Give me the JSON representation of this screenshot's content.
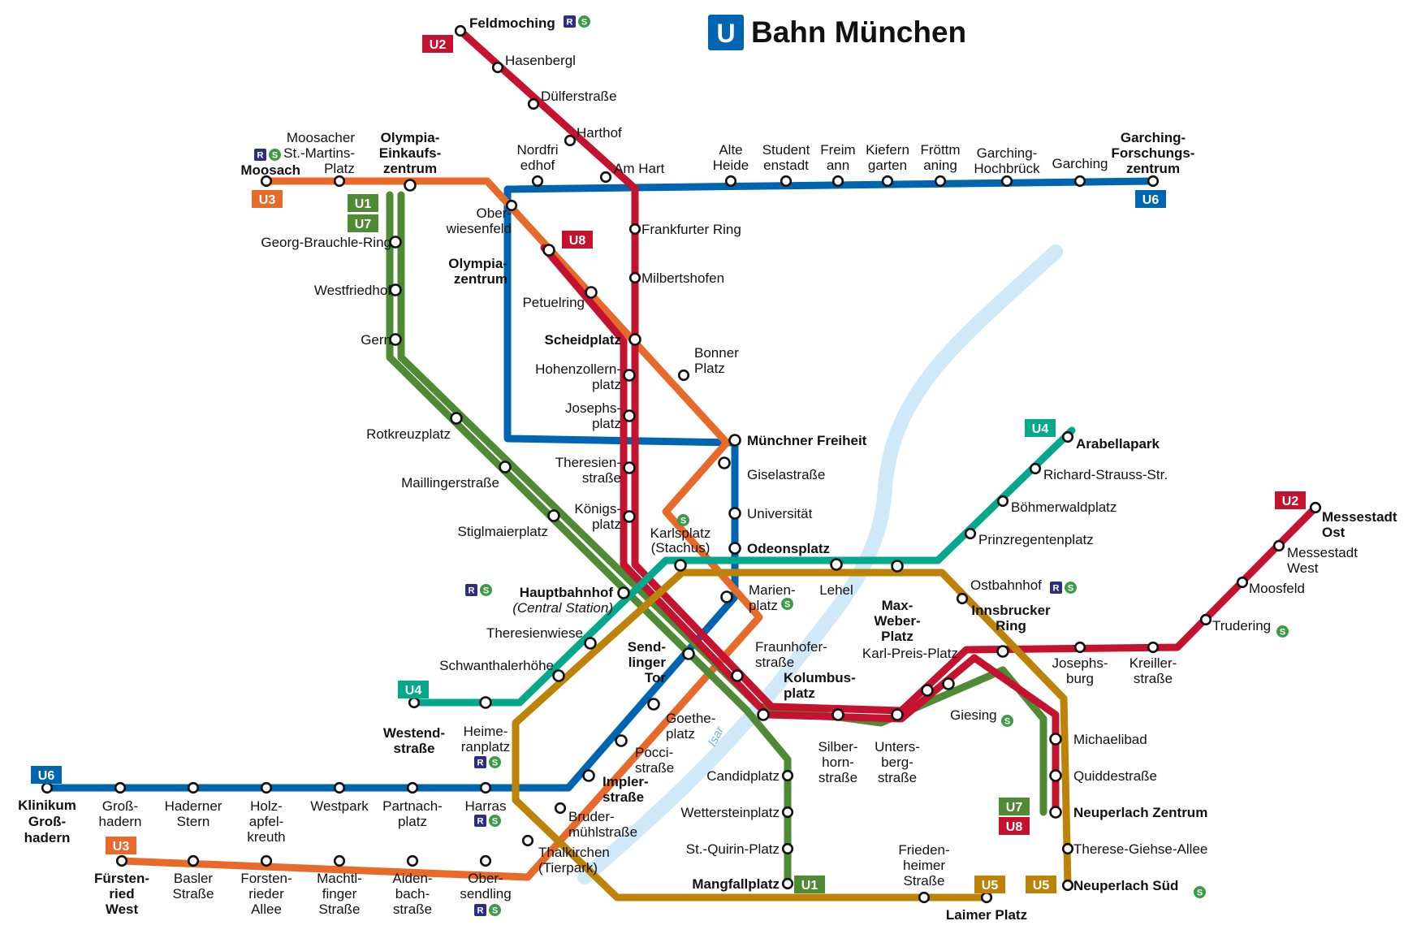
{
  "title": {
    "symbol": "U",
    "text": "Bahn München"
  },
  "river": {
    "name": "Isar"
  },
  "colors": {
    "U1": "#4f8a34",
    "U2": "#c4122f",
    "U3": "#e86a2a",
    "U4": "#05a88a",
    "U5": "#bd8208",
    "U6": "#0065b0",
    "U7": "#4f8a34",
    "U8": "#c4122f",
    "title_symbol": "#0065b0",
    "regional": "#2e2e80",
    "sbahn": "#3d9b47",
    "river": "#cfe9f8"
  },
  "badges": [
    {
      "id": "u2-north",
      "text": "U2",
      "line": "U2"
    },
    {
      "id": "u3-west",
      "text": "U3",
      "line": "U3"
    },
    {
      "id": "u1-north",
      "text": "U1",
      "line": "U1"
    },
    {
      "id": "u7-north",
      "text": "U7",
      "line": "U7"
    },
    {
      "id": "u8-north",
      "text": "U8",
      "line": "U8"
    },
    {
      "id": "u6-east",
      "text": "U6",
      "line": "U6"
    },
    {
      "id": "u4-east",
      "text": "U4",
      "line": "U4"
    },
    {
      "id": "u2-east",
      "text": "U2",
      "line": "U2"
    },
    {
      "id": "u4-west",
      "text": "U4",
      "line": "U4"
    },
    {
      "id": "u6-west",
      "text": "U6",
      "line": "U6"
    },
    {
      "id": "u3-south",
      "text": "U3",
      "line": "U3"
    },
    {
      "id": "u1-south",
      "text": "U1",
      "line": "U1"
    },
    {
      "id": "u5-south",
      "text": "U5",
      "line": "U5"
    },
    {
      "id": "u7-south",
      "text": "U7",
      "line": "U7"
    },
    {
      "id": "u8-south",
      "text": "U8",
      "line": "U8"
    },
    {
      "id": "u5-east",
      "text": "U5",
      "line": "U5"
    }
  ],
  "interchange_icons": {
    "regional": "R",
    "sbahn": "S"
  },
  "stations": [
    {
      "id": "feldmoching",
      "lines": [
        "U2"
      ]
    },
    {
      "id": "hasenbergl",
      "lines": [
        "U2"
      ]
    },
    {
      "id": "duelferstrasse",
      "lines": [
        "U2"
      ]
    },
    {
      "id": "harthof",
      "lines": [
        "U2"
      ]
    },
    {
      "id": "am-hart",
      "lines": [
        "U2"
      ]
    },
    {
      "id": "frankfurter-ring",
      "lines": [
        "U2"
      ]
    },
    {
      "id": "milbertshofen",
      "lines": [
        "U2"
      ]
    },
    {
      "id": "moosach",
      "lines": [
        "U3"
      ]
    },
    {
      "id": "moosacher-st-martins-platz",
      "lines": [
        "U3"
      ]
    },
    {
      "id": "olympia-einkaufszentrum",
      "lines": [
        "U1",
        "U3",
        "U7"
      ]
    },
    {
      "id": "georg-brauchle-ring",
      "lines": [
        "U1",
        "U7"
      ]
    },
    {
      "id": "westfriedhof",
      "lines": [
        "U1",
        "U7"
      ]
    },
    {
      "id": "gern",
      "lines": [
        "U1",
        "U7"
      ]
    },
    {
      "id": "rotkreuzplatz",
      "lines": [
        "U1",
        "U7"
      ]
    },
    {
      "id": "maillingerstrasse",
      "lines": [
        "U1",
        "U7"
      ]
    },
    {
      "id": "stiglmaierplatz",
      "lines": [
        "U1",
        "U7"
      ]
    },
    {
      "id": "oberwiesenfeld",
      "lines": [
        "U3"
      ]
    },
    {
      "id": "olympiazentrum",
      "lines": [
        "U3",
        "U8"
      ]
    },
    {
      "id": "petuelring",
      "lines": [
        "U3",
        "U8"
      ]
    },
    {
      "id": "scheidplatz",
      "lines": [
        "U2",
        "U3",
        "U8"
      ]
    },
    {
      "id": "bonner-platz",
      "lines": [
        "U3"
      ]
    },
    {
      "id": "hohenzollernplatz",
      "lines": [
        "U2",
        "U8"
      ]
    },
    {
      "id": "josephsplatz",
      "lines": [
        "U2",
        "U8"
      ]
    },
    {
      "id": "theresienstrasse",
      "lines": [
        "U2",
        "U8"
      ]
    },
    {
      "id": "koenigsplatz",
      "lines": [
        "U2",
        "U8"
      ]
    },
    {
      "id": "nordfriedhof",
      "lines": [
        "U6"
      ]
    },
    {
      "id": "alte-heide",
      "lines": [
        "U6"
      ]
    },
    {
      "id": "studentenstadt",
      "lines": [
        "U6"
      ]
    },
    {
      "id": "freimann",
      "lines": [
        "U6"
      ]
    },
    {
      "id": "kieferngarten",
      "lines": [
        "U6"
      ]
    },
    {
      "id": "froettmaning",
      "lines": [
        "U6"
      ]
    },
    {
      "id": "garching-hochbrueck",
      "lines": [
        "U6"
      ]
    },
    {
      "id": "garching",
      "lines": [
        "U6"
      ]
    },
    {
      "id": "garching-forschungszentrum",
      "lines": [
        "U6"
      ]
    },
    {
      "id": "muenchner-freiheit",
      "lines": [
        "U3",
        "U6"
      ]
    },
    {
      "id": "giselastrasse",
      "lines": [
        "U3",
        "U6"
      ]
    },
    {
      "id": "universitaet",
      "lines": [
        "U3",
        "U6"
      ]
    },
    {
      "id": "odeonsplatz",
      "lines": [
        "U3",
        "U4",
        "U5",
        "U6"
      ]
    },
    {
      "id": "marienplatz",
      "lines": [
        "U3",
        "U6"
      ]
    },
    {
      "id": "karlsplatz",
      "lines": [
        "U4",
        "U5"
      ]
    },
    {
      "id": "hauptbahnhof",
      "lines": [
        "U1",
        "U2",
        "U4",
        "U5",
        "U7",
        "U8"
      ]
    },
    {
      "id": "theresienwiese",
      "lines": [
        "U4",
        "U5"
      ]
    },
    {
      "id": "schwanthalerhoehe",
      "lines": [
        "U4",
        "U5"
      ]
    },
    {
      "id": "westendstrasse",
      "lines": [
        "U4"
      ]
    },
    {
      "id": "heimeranplatz",
      "lines": [
        "U4",
        "U5"
      ]
    },
    {
      "id": "lehel",
      "lines": [
        "U4",
        "U5"
      ]
    },
    {
      "id": "max-weber-platz",
      "lines": [
        "U4",
        "U5"
      ]
    },
    {
      "id": "prinzregentenplatz",
      "lines": [
        "U4"
      ]
    },
    {
      "id": "boehmerwaldplatz",
      "lines": [
        "U4"
      ]
    },
    {
      "id": "richard-strauss-str",
      "lines": [
        "U4"
      ]
    },
    {
      "id": "arabellapark",
      "lines": [
        "U4"
      ]
    },
    {
      "id": "ostbahnhof",
      "lines": [
        "U5"
      ]
    },
    {
      "id": "innsbrucker-ring",
      "lines": [
        "U2",
        "U5",
        "U7",
        "U8"
      ]
    },
    {
      "id": "josephsburg",
      "lines": [
        "U2"
      ]
    },
    {
      "id": "kreillerstrasse",
      "lines": [
        "U2"
      ]
    },
    {
      "id": "trudering",
      "lines": [
        "U2"
      ]
    },
    {
      "id": "moosfeld",
      "lines": [
        "U2"
      ]
    },
    {
      "id": "messestadt-west",
      "lines": [
        "U2"
      ]
    },
    {
      "id": "messestadt-ost",
      "lines": [
        "U2"
      ]
    },
    {
      "id": "michaelibad",
      "lines": [
        "U5",
        "U7",
        "U8"
      ]
    },
    {
      "id": "quiddestrasse",
      "lines": [
        "U5",
        "U7",
        "U8"
      ]
    },
    {
      "id": "neuperlach-zentrum",
      "lines": [
        "U5",
        "U7",
        "U8"
      ]
    },
    {
      "id": "therese-giehse-allee",
      "lines": [
        "U5"
      ]
    },
    {
      "id": "neuperlach-sued",
      "lines": [
        "U5"
      ]
    },
    {
      "id": "sendlinger-tor",
      "lines": [
        "U1",
        "U2",
        "U3",
        "U6",
        "U7",
        "U8"
      ]
    },
    {
      "id": "fraunhoferstrasse",
      "lines": [
        "U1",
        "U2",
        "U7",
        "U8"
      ]
    },
    {
      "id": "kolumbusplatz",
      "lines": [
        "U1",
        "U2",
        "U7",
        "U8"
      ]
    },
    {
      "id": "silberhornstrasse",
      "lines": [
        "U2",
        "U7",
        "U8"
      ]
    },
    {
      "id": "untersbergstrasse",
      "lines": [
        "U2",
        "U7",
        "U8"
      ]
    },
    {
      "id": "karl-preis-platz",
      "lines": [
        "U2",
        "U7",
        "U8"
      ]
    },
    {
      "id": "giesing",
      "lines": [
        "U2",
        "U7",
        "U8"
      ]
    },
    {
      "id": "candidplatz",
      "lines": [
        "U1"
      ]
    },
    {
      "id": "wettersteinplatz",
      "lines": [
        "U1"
      ]
    },
    {
      "id": "st-quirin-platz",
      "lines": [
        "U1"
      ]
    },
    {
      "id": "mangfallplatz",
      "lines": [
        "U1"
      ]
    },
    {
      "id": "goetheplatz",
      "lines": [
        "U3",
        "U6"
      ]
    },
    {
      "id": "poccistrasse",
      "lines": [
        "U3",
        "U6"
      ]
    },
    {
      "id": "implerstrasse",
      "lines": [
        "U3",
        "U6"
      ]
    },
    {
      "id": "brudermuehlstrasse",
      "lines": [
        "U3"
      ]
    },
    {
      "id": "thalkirchen",
      "lines": [
        "U3"
      ]
    },
    {
      "id": "harras",
      "lines": [
        "U6"
      ]
    },
    {
      "id": "partnachplatz",
      "lines": [
        "U6"
      ]
    },
    {
      "id": "westpark",
      "lines": [
        "U6"
      ]
    },
    {
      "id": "holzapfelkreuth",
      "lines": [
        "U6"
      ]
    },
    {
      "id": "haderner-stern",
      "lines": [
        "U6"
      ]
    },
    {
      "id": "grosshadern",
      "lines": [
        "U6"
      ]
    },
    {
      "id": "klinikum-grosshadern",
      "lines": [
        "U6"
      ]
    },
    {
      "id": "obersendling",
      "lines": [
        "U3"
      ]
    },
    {
      "id": "aidenbachstrasse",
      "lines": [
        "U3"
      ]
    },
    {
      "id": "machtlfinger-strasse",
      "lines": [
        "U3"
      ]
    },
    {
      "id": "forstenrieder-allee",
      "lines": [
        "U3"
      ]
    },
    {
      "id": "basler-strasse",
      "lines": [
        "U3"
      ]
    },
    {
      "id": "fuerstenried-west",
      "lines": [
        "U3"
      ]
    },
    {
      "id": "friedenheimer-strasse",
      "lines": [
        "U5"
      ]
    },
    {
      "id": "laimer-platz",
      "lines": [
        "U5"
      ]
    }
  ],
  "labels": [
    {
      "t": "Feldmoching",
      "bold": true
    },
    {
      "t": "Hasenbergl"
    },
    {
      "t": "Dülferstraße"
    },
    {
      "t": "Harthof"
    },
    {
      "t": "Am Hart"
    },
    {
      "t": "Frankfurter Ring"
    },
    {
      "t": "Milbertshofen"
    },
    {
      "t": "Moosach",
      "bold": true
    },
    {
      "t": "Moosacher"
    },
    {
      "t": "St.-Martins-"
    },
    {
      "t": "Platz"
    },
    {
      "t": "Olympia-",
      "bold": true
    },
    {
      "t": "Einkaufs-",
      "bold": true
    },
    {
      "t": "zentrum",
      "bold": true
    },
    {
      "t": "Georg-Brauchle-Ring"
    },
    {
      "t": "Westfriedhof"
    },
    {
      "t": "Gern"
    },
    {
      "t": "Rotkreuzplatz"
    },
    {
      "t": "Maillingerstraße"
    },
    {
      "t": "Stiglmaierplatz"
    },
    {
      "t": "Ober-"
    },
    {
      "t": "wiesenfeld"
    },
    {
      "t": "Olympia-",
      "bold": true
    },
    {
      "t": "zentrum",
      "bold": true
    },
    {
      "t": "Petuelring"
    },
    {
      "t": "Scheidplatz",
      "bold": true
    },
    {
      "t": "Bonner"
    },
    {
      "t": "Platz"
    },
    {
      "t": "Hohenzollern-"
    },
    {
      "t": "platz"
    },
    {
      "t": "Josephs-"
    },
    {
      "t": "platz"
    },
    {
      "t": "Theresien-"
    },
    {
      "t": "straße"
    },
    {
      "t": "Königs-"
    },
    {
      "t": "platz"
    },
    {
      "t": "Nordfri"
    },
    {
      "t": "edhof"
    },
    {
      "t": "Alte"
    },
    {
      "t": "Heide"
    },
    {
      "t": "Student"
    },
    {
      "t": "enstadt"
    },
    {
      "t": "Freim"
    },
    {
      "t": "ann"
    },
    {
      "t": "Kiefern"
    },
    {
      "t": "garten"
    },
    {
      "t": "Fröttm"
    },
    {
      "t": "aning"
    },
    {
      "t": "Garching-"
    },
    {
      "t": "Hochbrück"
    },
    {
      "t": "Garching"
    },
    {
      "t": "Garching-",
      "bold": true
    },
    {
      "t": "Forschungs-",
      "bold": true
    },
    {
      "t": "zentrum",
      "bold": true
    },
    {
      "t": "Münchner Freiheit",
      "bold": true
    },
    {
      "t": "Giselastraße"
    },
    {
      "t": "Universität"
    },
    {
      "t": "Odeonsplatz",
      "bold": true
    },
    {
      "t": "Karlsplatz"
    },
    {
      "t": "(Stachus)"
    },
    {
      "t": "Hauptbahnhof",
      "bold": true
    },
    {
      "t": "(Central Station)",
      "ital": true
    },
    {
      "t": "Marien-"
    },
    {
      "t": "platz"
    },
    {
      "t": "Lehel"
    },
    {
      "t": "Max-",
      "bold": true
    },
    {
      "t": "Weber-",
      "bold": true
    },
    {
      "t": "Platz",
      "bold": true
    },
    {
      "t": "Theresienwiese"
    },
    {
      "t": "Schwanthalerhöhe"
    },
    {
      "t": "Westend-",
      "bold": true
    },
    {
      "t": "straße",
      "bold": true
    },
    {
      "t": "Heime-"
    },
    {
      "t": "ranplatz"
    },
    {
      "t": "Arabellapark",
      "bold": true
    },
    {
      "t": "Richard-Strauss-Str."
    },
    {
      "t": "Böhmerwaldplatz"
    },
    {
      "t": "Prinzregentenplatz"
    },
    {
      "t": "Ostbahnhof"
    },
    {
      "t": "Innsbrucker",
      "bold": true
    },
    {
      "t": "Ring",
      "bold": true
    },
    {
      "t": "Josephs-"
    },
    {
      "t": "burg"
    },
    {
      "t": "Kreiller-"
    },
    {
      "t": "straße"
    },
    {
      "t": "Trudering"
    },
    {
      "t": "Moosfeld"
    },
    {
      "t": "Messestadt"
    },
    {
      "t": "West"
    },
    {
      "t": "Messestadt",
      "bold": true
    },
    {
      "t": "Ost",
      "bold": true
    },
    {
      "t": "Michaelibad"
    },
    {
      "t": "Quiddestraße"
    },
    {
      "t": "Neuperlach Zentrum",
      "bold": true
    },
    {
      "t": "Therese-Giehse-Allee"
    },
    {
      "t": "Neuperlach Süd",
      "bold": true
    },
    {
      "t": "Send-",
      "bold": true
    },
    {
      "t": "linger",
      "bold": true
    },
    {
      "t": "Tor",
      "bold": true
    },
    {
      "t": "Fraunhofer-"
    },
    {
      "t": "straße"
    },
    {
      "t": "Kolumbus-",
      "bold": true
    },
    {
      "t": "platz",
      "bold": true
    },
    {
      "t": "Karl-Preis-Platz"
    },
    {
      "t": "Giesing"
    },
    {
      "t": "Silber-"
    },
    {
      "t": "horn-"
    },
    {
      "t": "straße"
    },
    {
      "t": "Unters-"
    },
    {
      "t": "berg-"
    },
    {
      "t": "straße"
    },
    {
      "t": "Candidplatz"
    },
    {
      "t": "Wettersteinplatz"
    },
    {
      "t": "St.-Quirin-Platz"
    },
    {
      "t": "Mangfallplatz",
      "bold": true
    },
    {
      "t": "Goethe-"
    },
    {
      "t": "platz"
    },
    {
      "t": "Pocci-"
    },
    {
      "t": "straße"
    },
    {
      "t": "Impler-",
      "bold": true
    },
    {
      "t": "straße",
      "bold": true
    },
    {
      "t": "Bruder-"
    },
    {
      "t": "mühlstraße"
    },
    {
      "t": "Thalkirchen"
    },
    {
      "t": "(Tierpark)"
    },
    {
      "t": "Harras"
    },
    {
      "t": "Partnach-"
    },
    {
      "t": "platz"
    },
    {
      "t": "Westpark"
    },
    {
      "t": "Holz-"
    },
    {
      "t": "apfel-"
    },
    {
      "t": "kreuth"
    },
    {
      "t": "Haderner"
    },
    {
      "t": "Stern"
    },
    {
      "t": "Groß-"
    },
    {
      "t": "hadern"
    },
    {
      "t": "Klinikum",
      "bold": true
    },
    {
      "t": "Groß-",
      "bold": true
    },
    {
      "t": "hadern",
      "bold": true
    },
    {
      "t": "Ober-"
    },
    {
      "t": "sendling"
    },
    {
      "t": "Aiden-"
    },
    {
      "t": "bach-"
    },
    {
      "t": "straße"
    },
    {
      "t": "Machtl-"
    },
    {
      "t": "finger"
    },
    {
      "t": "Straße"
    },
    {
      "t": "Forsten-"
    },
    {
      "t": "rieder"
    },
    {
      "t": "Allee"
    },
    {
      "t": "Basler"
    },
    {
      "t": "Straße"
    },
    {
      "t": "Fürsten-",
      "bold": true
    },
    {
      "t": "ried",
      "bold": true
    },
    {
      "t": "West",
      "bold": true
    },
    {
      "t": "Frieden-"
    },
    {
      "t": "heimer"
    },
    {
      "t": "Straße"
    },
    {
      "t": "Laimer Platz",
      "bold": true
    }
  ]
}
